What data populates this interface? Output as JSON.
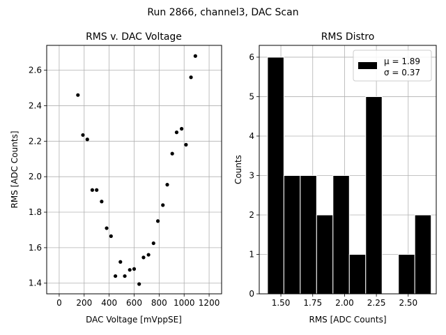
{
  "figure": {
    "suptitle": "Run 2866, channel3, DAC Scan"
  },
  "chart_data": [
    {
      "type": "scatter",
      "title": "RMS v. DAC Voltage",
      "xlabel": "DAC Voltage [mVppSE]",
      "ylabel": "RMS [ADC Counts]",
      "xlim": [
        -100,
        1300
      ],
      "ylim": [
        1.34,
        2.74
      ],
      "xticks": [
        0,
        200,
        400,
        600,
        800,
        1000,
        1200
      ],
      "yticks": [
        1.4,
        1.6,
        1.8,
        2.0,
        2.2,
        2.4,
        2.6
      ],
      "xticklabels": [
        "0",
        "200",
        "400",
        "600",
        "800",
        "1000",
        "1200"
      ],
      "yticklabels": [
        "1.4",
        "1.6",
        "1.8",
        "2.0",
        "2.2",
        "2.4",
        "2.6"
      ],
      "grid": true,
      "marker_color": "#000000",
      "points": [
        {
          "x": 150,
          "y": 2.46
        },
        {
          "x": 190,
          "y": 2.235
        },
        {
          "x": 225,
          "y": 2.21
        },
        {
          "x": 265,
          "y": 1.925
        },
        {
          "x": 300,
          "y": 1.925
        },
        {
          "x": 340,
          "y": 1.86
        },
        {
          "x": 380,
          "y": 1.71
        },
        {
          "x": 415,
          "y": 1.665
        },
        {
          "x": 450,
          "y": 1.44
        },
        {
          "x": 490,
          "y": 1.52
        },
        {
          "x": 525,
          "y": 1.44
        },
        {
          "x": 565,
          "y": 1.475
        },
        {
          "x": 600,
          "y": 1.48
        },
        {
          "x": 640,
          "y": 1.395
        },
        {
          "x": 675,
          "y": 1.545
        },
        {
          "x": 715,
          "y": 1.56
        },
        {
          "x": 755,
          "y": 1.625
        },
        {
          "x": 790,
          "y": 1.75
        },
        {
          "x": 830,
          "y": 1.84
        },
        {
          "x": 865,
          "y": 1.955
        },
        {
          "x": 905,
          "y": 2.13
        },
        {
          "x": 940,
          "y": 2.25
        },
        {
          "x": 980,
          "y": 2.27
        },
        {
          "x": 1015,
          "y": 2.18
        },
        {
          "x": 1055,
          "y": 2.56
        },
        {
          "x": 1090,
          "y": 2.68
        }
      ]
    },
    {
      "type": "bar",
      "title": "RMS Distro",
      "xlabel": "RMS [ADC Counts]",
      "ylabel": "Counts",
      "xlim": [
        1.33,
        2.72
      ],
      "ylim": [
        0,
        6.3
      ],
      "xticks": [
        1.5,
        1.75,
        2.0,
        2.25,
        2.5
      ],
      "yticks": [
        0,
        1,
        2,
        3,
        4,
        5,
        6
      ],
      "xticklabels": [
        "1.50",
        "1.75",
        "2.00",
        "2.25",
        "2.50"
      ],
      "yticklabels": [
        "0",
        "1",
        "2",
        "3",
        "4",
        "5",
        "6"
      ],
      "grid": true,
      "bar_color": "#000000",
      "bar_edge_color": "#ffffff",
      "bin_edges": [
        1.395,
        1.5235,
        1.652,
        1.7805,
        1.909,
        2.0375,
        2.166,
        2.2945,
        2.423,
        2.5515,
        2.68
      ],
      "values": [
        6,
        3,
        3,
        2,
        3,
        1,
        5,
        0,
        1,
        2
      ],
      "legend": {
        "location": "upper right",
        "lines": [
          "μ = 1.89",
          "σ = 0.37"
        ]
      }
    }
  ]
}
